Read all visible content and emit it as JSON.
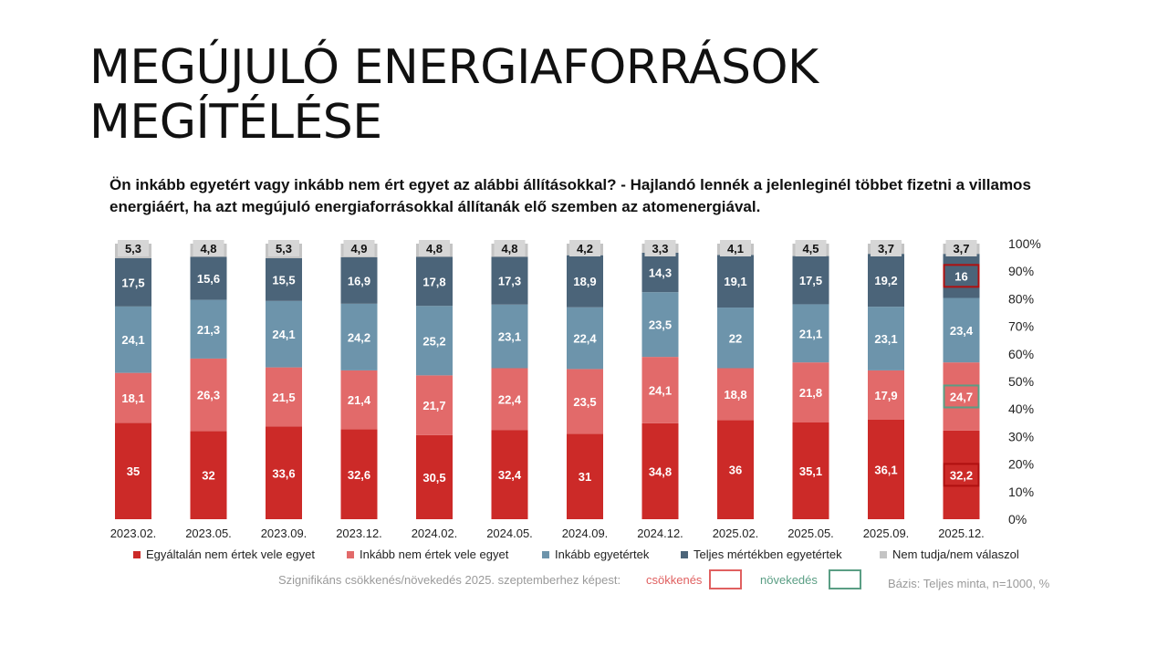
{
  "slide": {
    "title_line1": "MEGÚJULÓ ENERGIAFORRÁSOK",
    "title_line2": "MEGÍTÉLÉSE",
    "question": "Ön inkább egyetért vagy inkább nem ért egyet az alábbi állításokkal? - Hajlandó lennék a jelenleginél többet fizetni a villamos energiáért, ha azt megújuló energiaforrásokkal állítanák elő szemben az atomenergiával."
  },
  "colors": {
    "egyaltalan": "#cc2a28",
    "inkabb_nem": "#e26a6a",
    "inkabb_egyet": "#6d94ab",
    "teljes": "#4b6479",
    "nem_tudja": "#c4c4c4",
    "decrease_box": "#e06060",
    "increase_box": "#5a9e84",
    "highlight_dark": "#b01010"
  },
  "chart_data": {
    "type": "bar",
    "stacked": true,
    "categories": [
      "2023.02.",
      "2023.05.",
      "2023.09.",
      "2023.12.",
      "2024.02.",
      "2024.05.",
      "2024.09.",
      "2024.12.",
      "2025.02.",
      "2025.05.",
      "2025.09.",
      "2025.12."
    ],
    "series": [
      {
        "name": "Egyáltalán nem értek vele egyet",
        "color_key": "egyaltalan",
        "values": [
          35,
          32,
          33.6,
          32.6,
          30.5,
          32.4,
          31,
          34.8,
          36,
          35.1,
          36.1,
          32.2
        ],
        "labels": [
          "35",
          "32",
          "33,6",
          "32,6",
          "30,5",
          "32,4",
          "31",
          "34,8",
          "36",
          "35,1",
          "36,1",
          "32,2"
        ]
      },
      {
        "name": "Inkább nem értek vele egyet",
        "color_key": "inkabb_nem",
        "values": [
          18.1,
          26.3,
          21.5,
          21.4,
          21.7,
          22.4,
          23.5,
          24.1,
          18.8,
          21.8,
          17.9,
          24.7
        ],
        "labels": [
          "18,1",
          "26,3",
          "21,5",
          "21,4",
          "21,7",
          "22,4",
          "23,5",
          "24,1",
          "18,8",
          "21,8",
          "17,9",
          "24,7"
        ]
      },
      {
        "name": "Inkább egyetértek",
        "color_key": "inkabb_egyet",
        "values": [
          24.1,
          21.3,
          24.1,
          24.2,
          25.2,
          23.1,
          22.4,
          23.5,
          22,
          21.1,
          23.1,
          23.4
        ],
        "labels": [
          "24,1",
          "21,3",
          "24,1",
          "24,2",
          "25,2",
          "23,1",
          "22,4",
          "23,5",
          "22",
          "21,1",
          "23,1",
          "23,4"
        ]
      },
      {
        "name": "Teljes mértékben egyetértek",
        "color_key": "teljes",
        "values": [
          17.5,
          15.6,
          15.5,
          16.9,
          17.8,
          17.3,
          18.9,
          14.3,
          19.1,
          17.5,
          19.2,
          16
        ],
        "labels": [
          "17,5",
          "15,6",
          "15,5",
          "16,9",
          "17,8",
          "17,3",
          "18,9",
          "14,3",
          "19,1",
          "17,5",
          "19,2",
          "16"
        ]
      },
      {
        "name": "Nem tudja/nem válaszol",
        "color_key": "nem_tudja",
        "values": [
          5.3,
          4.8,
          5.3,
          4.9,
          4.8,
          4.8,
          4.2,
          3.3,
          4.1,
          4.5,
          3.7,
          3.7
        ],
        "labels": [
          "5,3",
          "4,8",
          "5,3",
          "4,9",
          "4,8",
          "4,8",
          "4,2",
          "3,3",
          "4,1",
          "4,5",
          "3,7",
          "3,7"
        ]
      }
    ],
    "highlights": [
      {
        "category_index": 11,
        "series_index": 0,
        "kind": "decrease"
      },
      {
        "category_index": 11,
        "series_index": 1,
        "kind": "increase"
      },
      {
        "category_index": 11,
        "series_index": 3,
        "kind": "decrease"
      }
    ],
    "y_ticks": [
      "0%",
      "10%",
      "20%",
      "30%",
      "40%",
      "50%",
      "60%",
      "70%",
      "80%",
      "90%",
      "100%"
    ],
    "ylim": [
      0,
      100
    ],
    "y_axis_side": "right",
    "grid": false,
    "legend_position": "bottom"
  },
  "footer": {
    "significance_text": "Szignifikáns csökkenés/növekedés 2025. szeptemberhez képest:",
    "decrease_label": "csökkenés",
    "increase_label": "növekedés",
    "base_text": "Bázis: Teljes minta, n=1000, %"
  }
}
